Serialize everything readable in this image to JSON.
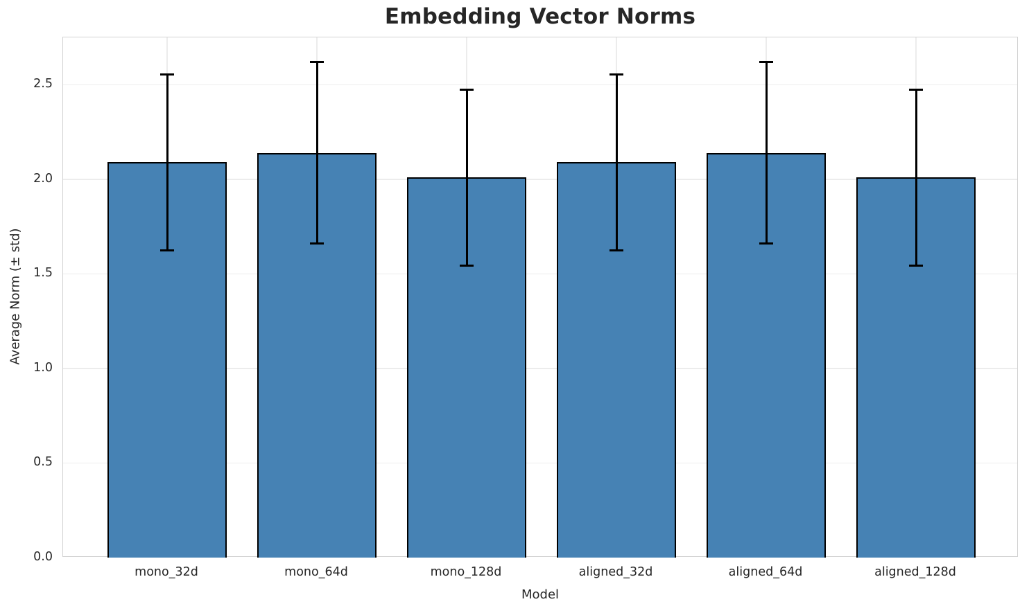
{
  "chart_data": {
    "type": "bar",
    "title": "Embedding Vector Norms",
    "xlabel": "Model",
    "ylabel": "Average Norm (± std)",
    "categories": [
      "mono_32d",
      "mono_64d",
      "mono_128d",
      "aligned_32d",
      "aligned_64d",
      "aligned_128d"
    ],
    "series": [
      {
        "name": "Average Norm",
        "values": [
          2.09,
          2.14,
          2.01,
          2.09,
          2.14,
          2.01
        ],
        "errors": [
          0.465,
          0.48,
          0.465,
          0.465,
          0.48,
          0.465
        ]
      }
    ],
    "yticks": [
      0.0,
      0.5,
      1.0,
      1.5,
      2.0,
      2.5
    ],
    "ylim": [
      0,
      2.75
    ],
    "grid": true,
    "legend_position": "none",
    "colors": {
      "bar_fill": "#4682b4",
      "bar_edge": "#000000",
      "error_bar": "#000000",
      "grid_line": "#ececec",
      "spine": "#d2d2d2",
      "text": "#262626",
      "background": "#ffffff"
    }
  }
}
